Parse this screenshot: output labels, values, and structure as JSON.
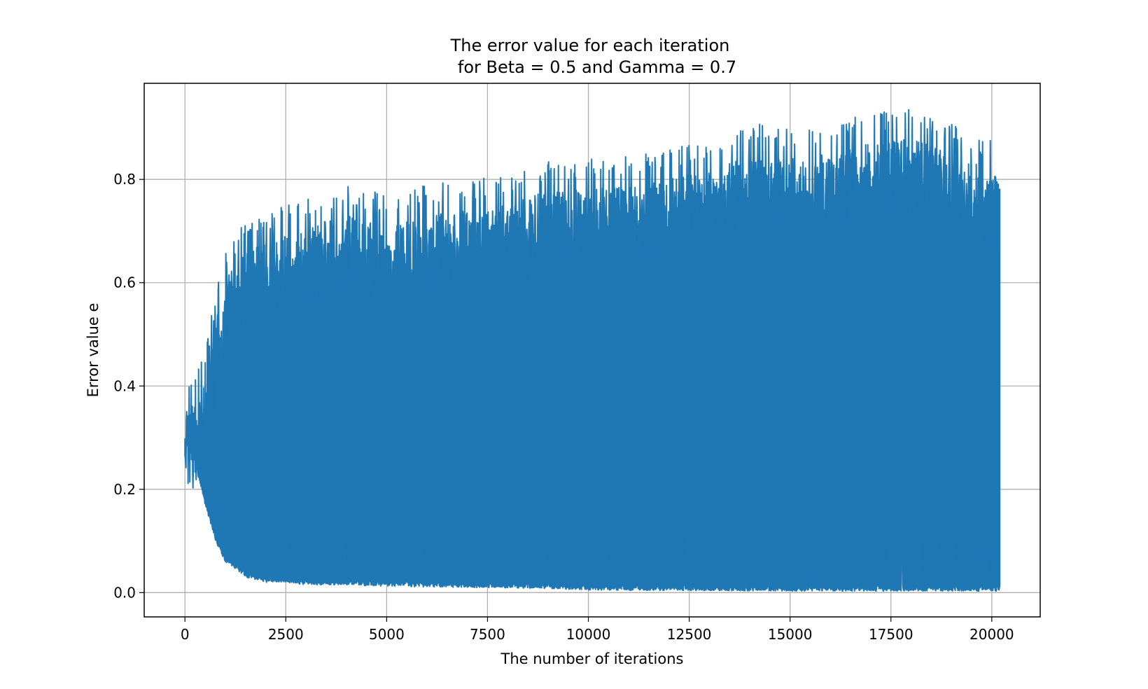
{
  "chart_data": {
    "type": "line",
    "title": "The error value for each iteration",
    "subtitle": "for Beta = 0.5 and Gamma = 0.7",
    "xlabel": "The number of iterations",
    "ylabel": "Error value e",
    "xlim": [
      -1010,
      21200
    ],
    "ylim": [
      -0.047,
      0.986
    ],
    "xticks": [
      0,
      2500,
      5000,
      7500,
      10000,
      12500,
      15000,
      17500,
      20000
    ],
    "xtick_labels": [
      "0",
      "2500",
      "5000",
      "7500",
      "10000",
      "12500",
      "15000",
      "17500",
      "20000"
    ],
    "yticks": [
      0.0,
      0.2,
      0.4,
      0.6,
      0.8
    ],
    "ytick_labels": [
      "0.0",
      "0.2",
      "0.4",
      "0.6",
      "0.8"
    ],
    "grid": true,
    "series": [
      {
        "color": "#1f77b4",
        "x_range": [
          0,
          20200
        ],
        "upper_envelope": {
          "x": [
            0,
            250,
            500,
            750,
            1000,
            1500,
            2000,
            2500,
            3000,
            3500,
            4000,
            5000,
            6000,
            7000,
            8000,
            9000,
            10000,
            11000,
            12000,
            13000,
            14000,
            15000,
            16000,
            17000,
            18000,
            19000,
            20000,
            20200
          ],
          "y": [
            0.43,
            0.42,
            0.47,
            0.58,
            0.67,
            0.72,
            0.74,
            0.75,
            0.76,
            0.78,
            0.79,
            0.77,
            0.79,
            0.8,
            0.81,
            0.84,
            0.84,
            0.85,
            0.86,
            0.88,
            0.91,
            0.9,
            0.91,
            0.93,
            0.94,
            0.91,
            0.88,
            0.86
          ]
        },
        "lower_envelope": {
          "x": [
            0,
            250,
            500,
            750,
            1000,
            1500,
            2000,
            2500,
            3000,
            4000,
            5000,
            7000,
            9000,
            10000,
            12000,
            15000,
            20000,
            20200
          ],
          "y": [
            0.29,
            0.25,
            0.17,
            0.1,
            0.06,
            0.03,
            0.02,
            0.02,
            0.015,
            0.015,
            0.012,
            0.01,
            0.008,
            0.005,
            0.004,
            0.003,
            0.003,
            0.003
          ]
        }
      }
    ]
  }
}
